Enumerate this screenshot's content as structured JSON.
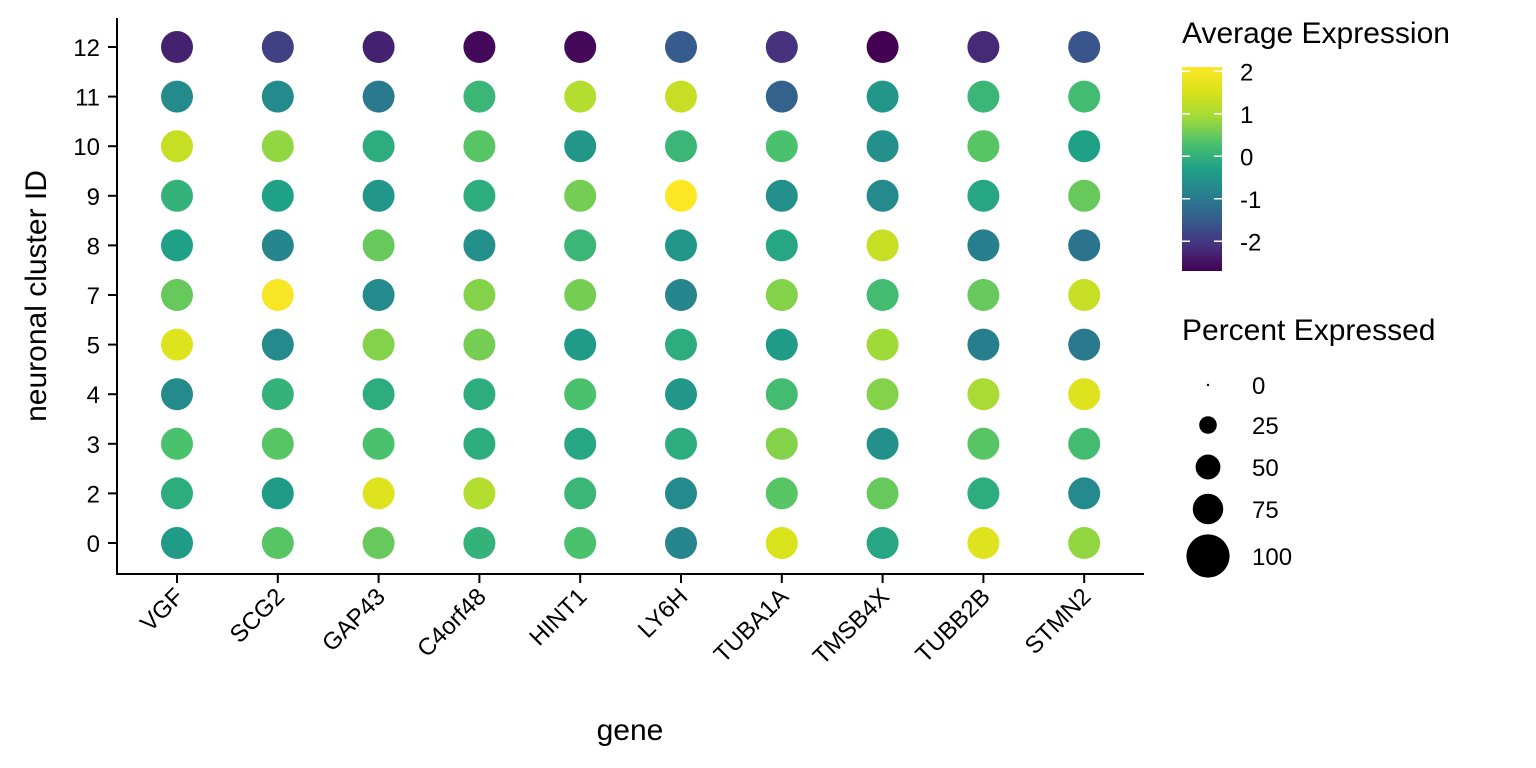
{
  "chart_data": {
    "type": "dot",
    "xlabel": "gene",
    "ylabel": "neuronal cluster ID",
    "genes": [
      "VGF",
      "SCG2",
      "GAP43",
      "C4orf48",
      "HINT1",
      "LY6H",
      "TUBA1A",
      "TMSB4X",
      "TUBB2B",
      "STMN2"
    ],
    "clusters": [
      "0",
      "2",
      "3",
      "4",
      "5",
      "7",
      "8",
      "9",
      "10",
      "11",
      "12"
    ],
    "average_expression": {
      "12": [
        -2.3,
        -1.9,
        -2.3,
        -2.6,
        -2.6,
        -1.5,
        -2.1,
        -2.7,
        -2.2,
        -1.6
      ],
      "11": [
        -0.7,
        -0.7,
        -1.0,
        0.1,
        1.1,
        1.3,
        -1.4,
        -0.5,
        0.1,
        0.2
      ],
      "10": [
        1.3,
        0.8,
        -0.1,
        0.4,
        -0.5,
        0.1,
        0.3,
        -0.6,
        0.4,
        -0.3
      ],
      "9": [
        0.0,
        -0.3,
        -0.5,
        -0.1,
        0.6,
        2.1,
        -0.6,
        -0.7,
        -0.2,
        0.5
      ],
      "8": [
        -0.3,
        -0.8,
        0.5,
        -0.6,
        0.1,
        -0.5,
        -0.2,
        1.3,
        -0.9,
        -1.1
      ],
      "7": [
        0.5,
        2.0,
        -0.7,
        0.7,
        0.6,
        -0.8,
        0.7,
        0.2,
        0.5,
        1.3
      ],
      "5": [
        1.6,
        -0.7,
        0.7,
        0.6,
        -0.4,
        -0.1,
        -0.4,
        0.9,
        -0.9,
        -1.0
      ],
      "4": [
        -0.7,
        0.0,
        -0.1,
        -0.1,
        0.3,
        -0.5,
        0.2,
        0.7,
        1.0,
        1.6
      ],
      "3": [
        0.3,
        0.4,
        0.3,
        -0.1,
        -0.2,
        -0.1,
        0.7,
        -0.6,
        0.4,
        0.2
      ],
      "2": [
        -0.1,
        -0.4,
        1.6,
        1.1,
        0.1,
        -0.7,
        0.4,
        0.5,
        -0.1,
        -0.7
      ],
      "0": [
        -0.4,
        0.4,
        0.5,
        0.0,
        0.3,
        -0.8,
        1.5,
        -0.2,
        1.6,
        0.8
      ]
    },
    "percent_expressed_all": 100,
    "color_scale": {
      "title": "Average Expression",
      "min": -2.7,
      "max": 2.1,
      "ticks": [
        2,
        1,
        0,
        -1,
        -2
      ],
      "tick_labels": [
        "2",
        "1",
        "0",
        "-1",
        "-2"
      ],
      "palette": "viridis"
    },
    "size_scale": {
      "title": "Percent Expressed",
      "values": [
        0,
        25,
        50,
        75,
        100
      ],
      "labels": [
        "0",
        "25",
        "50",
        "75",
        "100"
      ]
    },
    "grid": false,
    "legend_position": "right"
  }
}
